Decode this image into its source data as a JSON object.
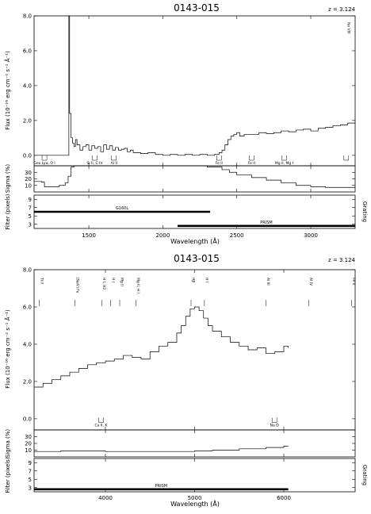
{
  "chart_data": [
    {
      "type": "line",
      "title": "0143-015",
      "redshift_label": "z = 3.124",
      "xlabel": "Wavelength (Å)",
      "xlim": [
        1130,
        3300
      ],
      "x_ticks": [
        "1500",
        "2000",
        "2500",
        "3000"
      ],
      "panels": {
        "flux": {
          "ylabel": "Flux (10⁻¹⁶ erg cm⁻² s⁻¹ Å⁻¹)",
          "ylim": [
            -0.6,
            8.0
          ],
          "y_ticks": [
            "0.0",
            "2.0",
            "4.0",
            "6.0",
            "8.0"
          ]
        },
        "sigma": {
          "ylabel": "Sigma (%)",
          "ylim": [
            0,
            40
          ],
          "y_ticks": [
            "10",
            "20",
            "30"
          ]
        },
        "filter": {
          "ylabel": "Filter (pixels)",
          "right_label": "Grating",
          "ylim": [
            2,
            10
          ],
          "y_ticks": [
            "3",
            "5",
            "7",
            "9"
          ]
        }
      },
      "series": [
        {
          "panel": "flux",
          "x": [
            1130,
            1350,
            1365,
            1370,
            1380,
            1390,
            1400,
            1410,
            1420,
            1440,
            1460,
            1480,
            1500,
            1520,
            1540,
            1560,
            1580,
            1600,
            1620,
            1640,
            1660,
            1680,
            1700,
            1720,
            1740,
            1760,
            1780,
            1800,
            1850,
            1900,
            1950,
            2000,
            2050,
            2100,
            2150,
            2200,
            2250,
            2300,
            2350,
            2380,
            2400,
            2420,
            2440,
            2460,
            2480,
            2500,
            2520,
            2550,
            2600,
            2650,
            2700,
            2750,
            2800,
            2850,
            2900,
            2950,
            3000,
            3050,
            3100,
            3150,
            3200,
            3250,
            3300
          ],
          "y": [
            0.0,
            0.0,
            8.0,
            2.4,
            1.0,
            0.7,
            0.5,
            0.9,
            0.6,
            0.3,
            0.5,
            0.6,
            0.3,
            0.55,
            0.4,
            0.5,
            0.2,
            0.6,
            0.35,
            0.55,
            0.3,
            0.45,
            0.3,
            0.35,
            0.4,
            0.2,
            0.3,
            0.15,
            0.1,
            0.15,
            0.05,
            0.0,
            0.05,
            0.0,
            0.05,
            0.0,
            0.05,
            0.0,
            0.05,
            0.15,
            0.3,
            0.6,
            0.9,
            1.1,
            1.2,
            1.3,
            1.1,
            1.2,
            1.2,
            1.3,
            1.25,
            1.3,
            1.4,
            1.35,
            1.45,
            1.5,
            1.4,
            1.55,
            1.6,
            1.7,
            1.75,
            1.85,
            1.9
          ]
        },
        {
          "panel": "sigma",
          "x": [
            1130,
            1180,
            1200,
            1260,
            1300,
            1340,
            1360,
            1380,
            1400,
            1450,
            1500,
            1550,
            1600,
            1700,
            1800,
            1900,
            2000,
            2100,
            2200,
            2300,
            2400,
            2450,
            2500,
            2600,
            2700,
            2800,
            2900,
            3000,
            3100,
            3200,
            3300
          ],
          "y": [
            16,
            15,
            8,
            8,
            10,
            14,
            24,
            38,
            40,
            40,
            40,
            40,
            40,
            40,
            40,
            40,
            40,
            40,
            40,
            38,
            34,
            30,
            26,
            22,
            18,
            14,
            10,
            8,
            7,
            7,
            7
          ]
        }
      ],
      "filter_bars": [
        {
          "label": "G160L",
          "x": [
            1130,
            2320
          ],
          "y": 6
        }
      ],
      "grating_bars": [
        {
          "label": "PRISM",
          "x": [
            2100,
            3300
          ],
          "y": 2.6
        }
      ],
      "line_ids": [
        {
          "label": "Geo Lyα, O I",
          "x": 1200
        },
        {
          "label": "Si II, C IV",
          "x": 1540
        },
        {
          "label": "Al II",
          "x": 1670
        },
        {
          "label": "Fe II",
          "x": 2380
        },
        {
          "label": "Fe II",
          "x": 2600
        },
        {
          "label": "Mg II, Mg I",
          "x": 2820
        },
        {
          "label": "Ne VIII",
          "x": 3240
        }
      ]
    },
    {
      "type": "line",
      "title": "0143-015",
      "redshift_label": "z = 3.124",
      "xlabel": "Wavelength (Å)",
      "xlim": [
        3200,
        6800
      ],
      "x_ticks": [
        "4000",
        "5000",
        "6000"
      ],
      "panels": {
        "flux": {
          "ylabel": "Flux (10⁻¹⁶ erg cm⁻² s⁻¹ Å⁻¹)",
          "ylim": [
            -0.6,
            8.0
          ],
          "y_ticks": [
            "0.0",
            "2.0",
            "4.0",
            "6.0",
            "8.0"
          ]
        },
        "sigma": {
          "ylabel": "Sigma (%)",
          "ylim": [
            0,
            40
          ],
          "y_ticks": [
            "10",
            "20",
            "30"
          ]
        },
        "filter": {
          "ylabel": "Filter (pixels)",
          "right_label": "Grating",
          "ylim": [
            2,
            10
          ],
          "y_ticks": [
            "3",
            "5",
            "7",
            "9"
          ]
        }
      },
      "series": [
        {
          "panel": "flux",
          "x": [
            3200,
            3300,
            3400,
            3500,
            3600,
            3700,
            3800,
            3900,
            4000,
            4100,
            4200,
            4300,
            4400,
            4500,
            4600,
            4700,
            4800,
            4850,
            4900,
            4950,
            5000,
            5050,
            5100,
            5150,
            5200,
            5300,
            5400,
            5500,
            5600,
            5700,
            5800,
            5900,
            6000,
            6050
          ],
          "y": [
            1.7,
            1.9,
            2.1,
            2.3,
            2.5,
            2.7,
            2.9,
            3.0,
            3.1,
            3.2,
            3.4,
            3.3,
            3.2,
            3.6,
            3.9,
            4.1,
            4.6,
            5.0,
            5.5,
            5.9,
            6.0,
            5.8,
            5.4,
            5.0,
            4.7,
            4.4,
            4.1,
            3.9,
            3.7,
            3.8,
            3.5,
            3.6,
            3.9,
            3.8
          ]
        },
        {
          "panel": "sigma",
          "x": [
            3200,
            3500,
            4000,
            4500,
            5000,
            5200,
            5500,
            5800,
            6000,
            6050
          ],
          "y": [
            8,
            9,
            8,
            8,
            9,
            10,
            12,
            14,
            16,
            16
          ]
        }
      ],
      "filter_bars": [],
      "grating_bars": [
        {
          "label": "PRISM",
          "x": [
            3200,
            6050
          ],
          "y": 2.6
        }
      ],
      "line_ids": [
        {
          "label": "Ti II",
          "x": 3260
        },
        {
          "label": "[NeV] Fe",
          "x": 3660
        },
        {
          "label": "H I, H2",
          "x": 3960
        },
        {
          "label": "H I",
          "x": 4060
        },
        {
          "label": "Mg II",
          "x": 4160
        },
        {
          "label": "Mg II, H I",
          "x": 4340
        },
        {
          "label": "Ca II, K",
          "x": 3950,
          "below": true
        },
        {
          "label": "Hβ",
          "x": 4960
        },
        {
          "label": "H I",
          "x": 5110
        },
        {
          "label": "Al III",
          "x": 5800
        },
        {
          "label": "Na D",
          "x": 5895,
          "below": true
        },
        {
          "label": "Al IV",
          "x": 6280
        },
        {
          "label": "Fe II",
          "x": 6760
        }
      ]
    }
  ]
}
